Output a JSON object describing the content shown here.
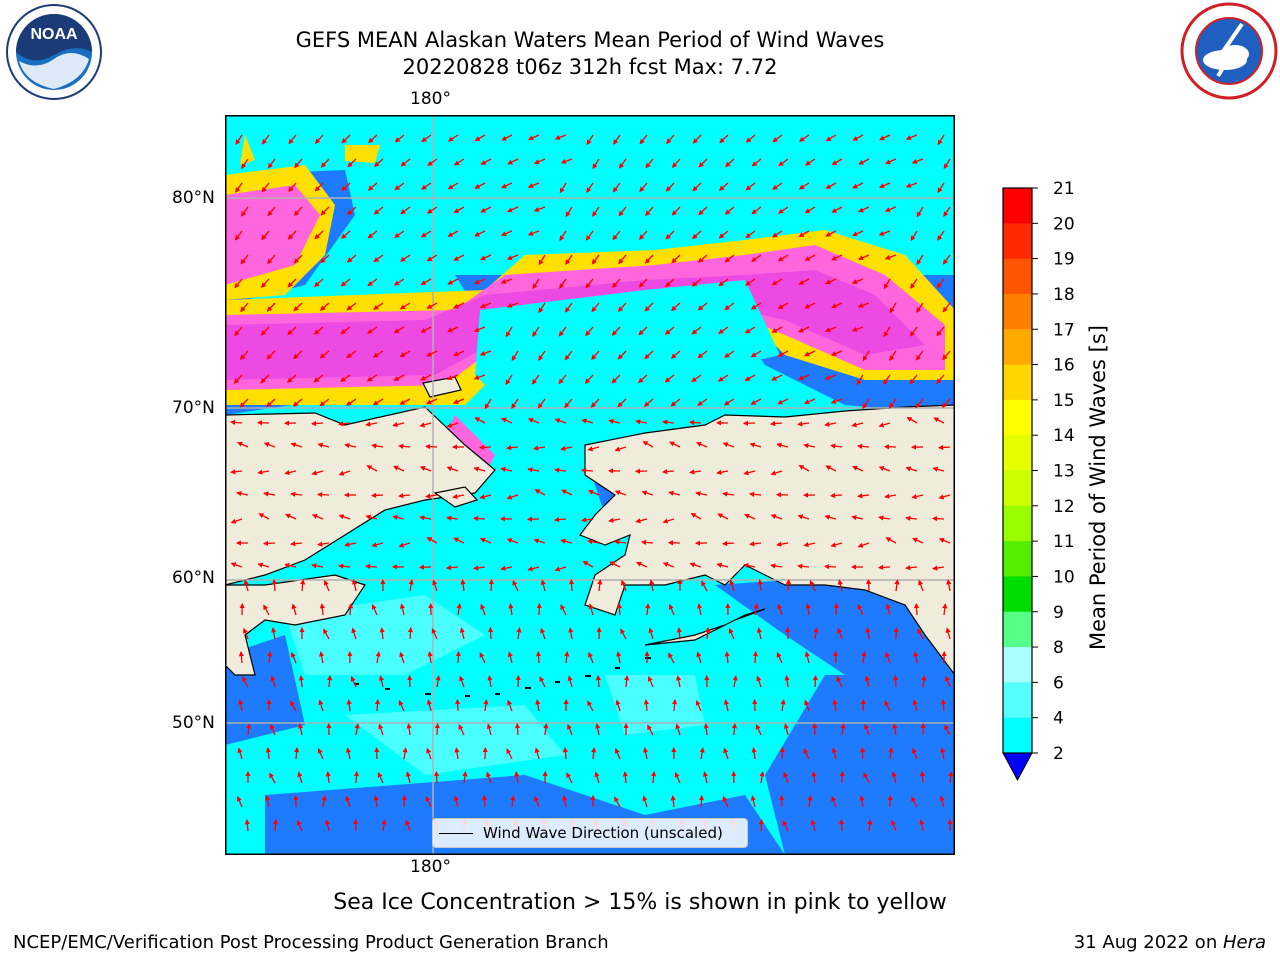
{
  "header": {
    "title_line1": "GEFS MEAN Alaskan Waters Mean Period of Wind Waves",
    "title_line2": "20220828 t06z 312h fcst   Max: 7.72"
  },
  "logos": {
    "left": "NOAA",
    "left_ring": "NATIONAL OCEANIC AND ATMOSPHERIC ADMINISTRATION · U.S. DEPARTMENT OF COMMERCE",
    "right_ring": "NATIONAL WEATHER SERVICE"
  },
  "map": {
    "lon_label_top": "180°",
    "lon_label_bottom": "180°",
    "lat_labels": [
      "80°N",
      "70°N",
      "60°N",
      "50°N"
    ],
    "legend_label": "Wind Wave Direction (unscaled)"
  },
  "colorbar": {
    "label": "Mean Period of Wind Waves [s]",
    "ticks": [
      "21",
      "20",
      "19",
      "18",
      "17",
      "16",
      "15",
      "14",
      "13",
      "12",
      "11",
      "10",
      "9",
      "8",
      "6",
      "4",
      "2"
    ],
    "colors": [
      "#ff0000",
      "#ff2a00",
      "#ff5500",
      "#ff8000",
      "#ffaa00",
      "#ffd400",
      "#ffff00",
      "#e6ff00",
      "#ccff00",
      "#99ff00",
      "#55ee00",
      "#00dd00",
      "#55ff88",
      "#aaffff",
      "#55ffff",
      "#00ffff",
      "#0077ff"
    ],
    "under_color": "#0000ff"
  },
  "footer": {
    "note": "Sea Ice Concentration > 15% is shown in pink to yellow",
    "credit": "NCEP/EMC/Verification Post Processing Product Generation Branch",
    "date": "31 Aug 2022 on ",
    "machine": "Hera"
  }
}
